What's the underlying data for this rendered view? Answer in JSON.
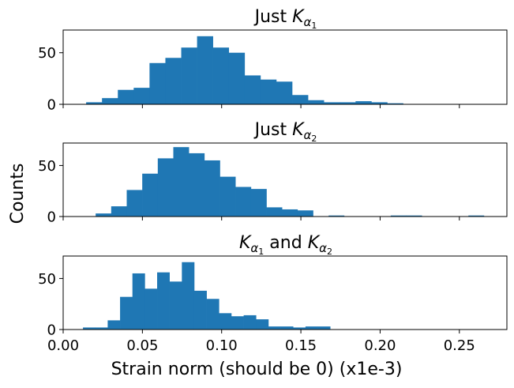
{
  "chart_data": {
    "type": "bar",
    "ylabel": "Counts",
    "xlabel": "Strain norm (should be 0) (x1e-3)",
    "xlim": [
      0.0,
      0.28
    ],
    "ylim": [
      0,
      72
    ],
    "x_ticks": [
      "0.00",
      "0.05",
      "0.10",
      "0.15",
      "0.20",
      "0.25"
    ],
    "y_ticks": [
      "0",
      "50"
    ],
    "bar_color": "#1f77b4",
    "grid": false,
    "panels": [
      {
        "title_parts": [
          "Just ",
          "K",
          "α",
          "1",
          ""
        ],
        "bin_start": 0.0145,
        "bin_width": 0.01,
        "values": [
          2,
          6,
          14,
          16,
          40,
          45,
          55,
          66,
          55,
          50,
          28,
          24,
          22,
          9,
          4,
          2,
          2,
          3,
          2,
          1,
          0,
          0,
          0,
          0,
          0,
          0
        ]
      },
      {
        "title_parts": [
          "Just ",
          "K",
          "α",
          "2",
          ""
        ],
        "bin_start": 0.0205,
        "bin_width": 0.0098,
        "values": [
          3,
          10,
          26,
          42,
          57,
          68,
          62,
          55,
          39,
          29,
          27,
          9,
          7,
          6,
          0,
          1,
          0,
          0,
          0,
          1,
          1,
          0,
          0,
          0,
          1,
          0
        ]
      },
      {
        "title_parts": [
          "",
          "K",
          "α",
          "1",
          " and "
        ],
        "title_suffix_parts": [
          "K",
          "α",
          "2"
        ],
        "bin_start": 0.0125,
        "bin_width": 0.0078,
        "values": [
          2,
          2,
          9,
          32,
          55,
          40,
          56,
          47,
          66,
          38,
          30,
          16,
          13,
          14,
          10,
          3,
          3,
          2,
          3,
          3
        ]
      }
    ]
  }
}
